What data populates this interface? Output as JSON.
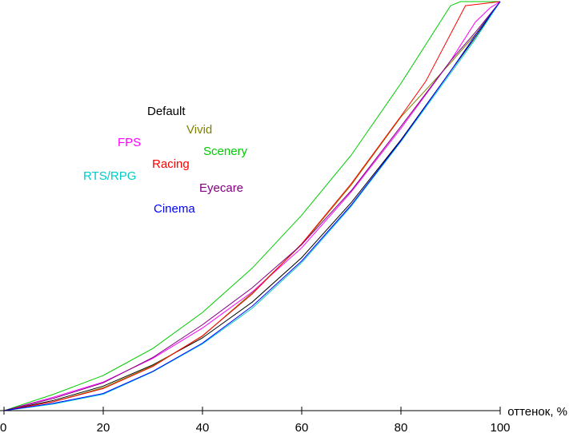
{
  "chart_data": {
    "type": "line",
    "title": "",
    "xlabel": "оттенок, %",
    "ylabel": "",
    "xlim": [
      0,
      100
    ],
    "ylim": [
      0,
      100
    ],
    "xticks": [
      0,
      20,
      40,
      60,
      80,
      100
    ],
    "grid": false,
    "legend_placement": "upper-left inline labels",
    "series": [
      {
        "name": "Default",
        "color": "#000000",
        "x": [
          0,
          10,
          20,
          30,
          40,
          50,
          60,
          70,
          80,
          90,
          95,
          100
        ],
        "y": [
          0,
          2.5,
          6.0,
          11.2,
          17.8,
          26.5,
          37.4,
          50.9,
          66.2,
          83.0,
          91.3,
          100
        ]
      },
      {
        "name": "Vivid",
        "color": "#808000",
        "x": [
          0,
          10,
          20,
          30,
          40,
          50,
          60,
          70,
          80,
          90,
          95,
          100
        ],
        "y": [
          0,
          2.2,
          5.6,
          11.0,
          18.2,
          28.8,
          40.6,
          55.2,
          71.8,
          85.0,
          92.0,
          100
        ]
      },
      {
        "name": "FPS",
        "color": "#ff00ff",
        "x": [
          0,
          10,
          20,
          30,
          40,
          50,
          60,
          70,
          80,
          90,
          95,
          98,
          100
        ],
        "y": [
          0,
          3.3,
          7.0,
          12.8,
          20.2,
          29.0,
          39.8,
          53.5,
          69.0,
          85.5,
          95.0,
          98.5,
          100
        ]
      },
      {
        "name": "Scenery",
        "color": "#00cc00",
        "x": [
          0,
          10,
          20,
          30,
          40,
          50,
          60,
          70,
          80,
          90,
          92,
          100
        ],
        "y": [
          0,
          4.0,
          8.6,
          15.2,
          24.0,
          34.8,
          47.8,
          62.5,
          80.0,
          99.0,
          100,
          100
        ]
      },
      {
        "name": "Racing",
        "color": "#ff0000",
        "x": [
          0,
          10,
          20,
          30,
          40,
          50,
          60,
          70,
          80,
          85,
          93,
          100
        ],
        "y": [
          0,
          2.2,
          5.4,
          10.8,
          18.3,
          28.5,
          40.8,
          55.5,
          72.0,
          80.5,
          99.0,
          100
        ]
      },
      {
        "name": "RTS/RPG",
        "color": "#00cccc",
        "x": [
          0,
          10,
          20,
          30,
          40,
          50,
          60,
          70,
          80,
          90,
          95,
          100
        ],
        "y": [
          0,
          1.6,
          4.0,
          9.5,
          16.3,
          25.0,
          36.2,
          50.0,
          65.8,
          82.5,
          90.8,
          100
        ]
      },
      {
        "name": "Eyecare",
        "color": "#800080",
        "x": [
          0,
          10,
          20,
          30,
          40,
          50,
          60,
          70,
          80,
          90,
          95,
          100
        ],
        "y": [
          0,
          3.0,
          6.8,
          13.0,
          21.0,
          30.0,
          40.6,
          53.8,
          69.5,
          85.5,
          92.5,
          100
        ]
      },
      {
        "name": "Cinema",
        "color": "#0000ff",
        "x": [
          0,
          10,
          20,
          30,
          40,
          50,
          60,
          70,
          80,
          90,
          95,
          100
        ],
        "y": [
          0,
          1.8,
          4.2,
          9.6,
          16.5,
          25.5,
          36.6,
          50.3,
          66.0,
          83.0,
          91.8,
          100
        ]
      }
    ]
  }
}
